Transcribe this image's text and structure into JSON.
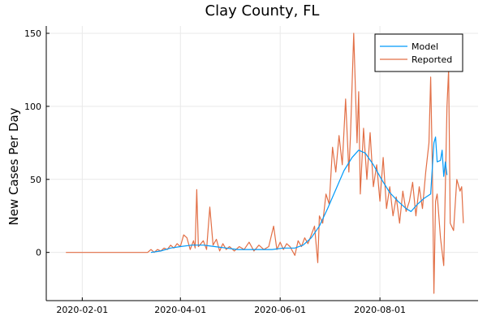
{
  "chart_data": {
    "type": "line",
    "title": "Clay County, FL",
    "xlabel": "",
    "ylabel": "New Cases Per Day",
    "xlim": [
      "2020-01-10",
      "2020-09-30"
    ],
    "ylim": [
      -33,
      155
    ],
    "x_ticks": [
      "2020-02-01",
      "2020-04-01",
      "2020-06-01",
      "2020-08-01"
    ],
    "y_ticks": [
      0,
      50,
      100,
      150
    ],
    "grid": true,
    "legend_position": "top-right",
    "series": [
      {
        "name": "Model",
        "color": "#009AFA",
        "points": [
          [
            "2020-03-14",
            0
          ],
          [
            "2020-03-20",
            1
          ],
          [
            "2020-03-26",
            3
          ],
          [
            "2020-04-01",
            4
          ],
          [
            "2020-04-08",
            5
          ],
          [
            "2020-04-15",
            5
          ],
          [
            "2020-04-22",
            4
          ],
          [
            "2020-04-29",
            3
          ],
          [
            "2020-05-06",
            2
          ],
          [
            "2020-05-13",
            2
          ],
          [
            "2020-05-20",
            2
          ],
          [
            "2020-05-27",
            2
          ],
          [
            "2020-06-03",
            3
          ],
          [
            "2020-06-10",
            3
          ],
          [
            "2020-06-15",
            5
          ],
          [
            "2020-06-20",
            10
          ],
          [
            "2020-06-25",
            18
          ],
          [
            "2020-06-30",
            30
          ],
          [
            "2020-07-05",
            43
          ],
          [
            "2020-07-10",
            56
          ],
          [
            "2020-07-15",
            65
          ],
          [
            "2020-07-19",
            70
          ],
          [
            "2020-07-23",
            68
          ],
          [
            "2020-07-28",
            60
          ],
          [
            "2020-08-02",
            50
          ],
          [
            "2020-08-07",
            41
          ],
          [
            "2020-08-12",
            35
          ],
          [
            "2020-08-17",
            30
          ],
          [
            "2020-08-20",
            28
          ],
          [
            "2020-08-24",
            33
          ],
          [
            "2020-08-28",
            37
          ],
          [
            "2020-09-01",
            40
          ],
          [
            "2020-09-03",
            75
          ],
          [
            "2020-09-04",
            79
          ],
          [
            "2020-09-05",
            62
          ],
          [
            "2020-09-07",
            63
          ],
          [
            "2020-09-08",
            70
          ],
          [
            "2020-09-09",
            52
          ],
          [
            "2020-09-10",
            62
          ],
          [
            "2020-09-11",
            53
          ]
        ]
      },
      {
        "name": "Reported",
        "color": "#E26F46",
        "points": [
          [
            "2020-01-22",
            0
          ],
          [
            "2020-03-12",
            0
          ],
          [
            "2020-03-14",
            2
          ],
          [
            "2020-03-16",
            0
          ],
          [
            "2020-03-18",
            2
          ],
          [
            "2020-03-20",
            1
          ],
          [
            "2020-03-22",
            3
          ],
          [
            "2020-03-24",
            2
          ],
          [
            "2020-03-26",
            5
          ],
          [
            "2020-03-28",
            3
          ],
          [
            "2020-03-30",
            6
          ],
          [
            "2020-04-01",
            4
          ],
          [
            "2020-04-03",
            12
          ],
          [
            "2020-04-05",
            10
          ],
          [
            "2020-04-07",
            2
          ],
          [
            "2020-04-09",
            8
          ],
          [
            "2020-04-10",
            3
          ],
          [
            "2020-04-11",
            43
          ],
          [
            "2020-04-12",
            4
          ],
          [
            "2020-04-15",
            8
          ],
          [
            "2020-04-17",
            2
          ],
          [
            "2020-04-19",
            31
          ],
          [
            "2020-04-21",
            5
          ],
          [
            "2020-04-23",
            9
          ],
          [
            "2020-04-25",
            1
          ],
          [
            "2020-04-27",
            6
          ],
          [
            "2020-04-29",
            2
          ],
          [
            "2020-05-01",
            4
          ],
          [
            "2020-05-04",
            1
          ],
          [
            "2020-05-07",
            4
          ],
          [
            "2020-05-10",
            2
          ],
          [
            "2020-05-13",
            7
          ],
          [
            "2020-05-16",
            1
          ],
          [
            "2020-05-19",
            5
          ],
          [
            "2020-05-22",
            2
          ],
          [
            "2020-05-25",
            4
          ],
          [
            "2020-05-28",
            18
          ],
          [
            "2020-05-30",
            2
          ],
          [
            "2020-06-01",
            7
          ],
          [
            "2020-06-03",
            2
          ],
          [
            "2020-06-05",
            6
          ],
          [
            "2020-06-07",
            4
          ],
          [
            "2020-06-10",
            -2
          ],
          [
            "2020-06-12",
            8
          ],
          [
            "2020-06-14",
            4
          ],
          [
            "2020-06-16",
            10
          ],
          [
            "2020-06-18",
            6
          ],
          [
            "2020-06-20",
            12
          ],
          [
            "2020-06-22",
            18
          ],
          [
            "2020-06-24",
            -7
          ],
          [
            "2020-06-25",
            25
          ],
          [
            "2020-06-27",
            20
          ],
          [
            "2020-06-29",
            40
          ],
          [
            "2020-07-01",
            33
          ],
          [
            "2020-07-03",
            72
          ],
          [
            "2020-07-05",
            55
          ],
          [
            "2020-07-07",
            80
          ],
          [
            "2020-07-09",
            60
          ],
          [
            "2020-07-11",
            105
          ],
          [
            "2020-07-13",
            55
          ],
          [
            "2020-07-14",
            80
          ],
          [
            "2020-07-16",
            150
          ],
          [
            "2020-07-18",
            75
          ],
          [
            "2020-07-19",
            110
          ],
          [
            "2020-07-20",
            40
          ],
          [
            "2020-07-22",
            85
          ],
          [
            "2020-07-24",
            50
          ],
          [
            "2020-07-26",
            82
          ],
          [
            "2020-07-28",
            45
          ],
          [
            "2020-07-30",
            60
          ],
          [
            "2020-08-01",
            35
          ],
          [
            "2020-08-03",
            65
          ],
          [
            "2020-08-05",
            30
          ],
          [
            "2020-08-07",
            45
          ],
          [
            "2020-08-09",
            25
          ],
          [
            "2020-08-11",
            38
          ],
          [
            "2020-08-13",
            20
          ],
          [
            "2020-08-15",
            42
          ],
          [
            "2020-08-17",
            28
          ],
          [
            "2020-08-19",
            35
          ],
          [
            "2020-08-21",
            48
          ],
          [
            "2020-08-23",
            25
          ],
          [
            "2020-08-25",
            45
          ],
          [
            "2020-08-27",
            30
          ],
          [
            "2020-08-29",
            55
          ],
          [
            "2020-08-31",
            75
          ],
          [
            "2020-09-01",
            120
          ],
          [
            "2020-09-02",
            60
          ],
          [
            "2020-09-03",
            -28
          ],
          [
            "2020-09-04",
            35
          ],
          [
            "2020-09-05",
            40
          ],
          [
            "2020-09-07",
            10
          ],
          [
            "2020-09-09",
            -9
          ],
          [
            "2020-09-11",
            100
          ],
          [
            "2020-09-12",
            125
          ],
          [
            "2020-09-13",
            20
          ],
          [
            "2020-09-15",
            15
          ],
          [
            "2020-09-17",
            50
          ],
          [
            "2020-09-19",
            42
          ],
          [
            "2020-09-20",
            45
          ],
          [
            "2020-09-21",
            20
          ]
        ]
      }
    ]
  }
}
